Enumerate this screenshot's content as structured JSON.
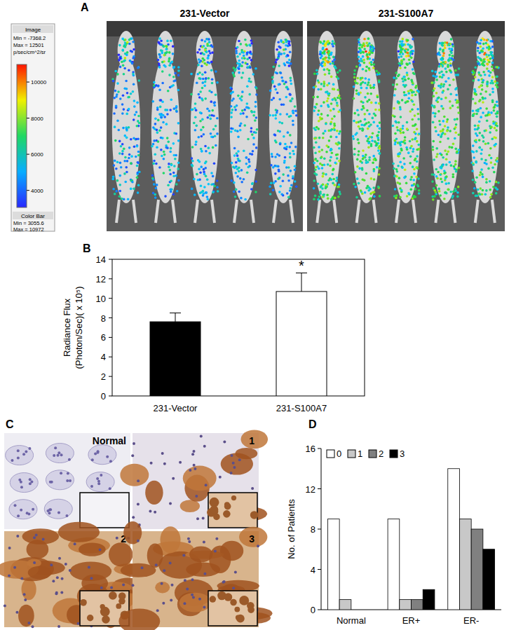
{
  "panel_labels": [
    "A",
    "B",
    "C",
    "D"
  ],
  "panel_a": {
    "groups": [
      "231-Vector",
      "231-S100A7"
    ],
    "image_title": "Image",
    "image_min": "Min = -7368.2",
    "image_max": "Max = 12501",
    "units": "p/sec/cm^2/sr",
    "colorbar_title": "Color Bar",
    "colorbar_min": "Min = 3055.6",
    "colorbar_max": "Max = 10972",
    "colorbar_range": [
      3055.6,
      10972
    ],
    "colorbar_ticks": [
      4000,
      6000,
      8000,
      10000
    ]
  },
  "panel_c": {
    "labels": [
      "Normal",
      "1",
      "2",
      "3"
    ]
  },
  "chart_data": [
    {
      "type": "bar",
      "categories": [
        "231-Vector",
        "231-S100A7"
      ],
      "values": [
        7.6,
        10.7
      ],
      "errors": [
        0.9,
        1.9
      ],
      "colors": [
        "#000000",
        "#ffffff"
      ],
      "y_label": [
        "Radiance Flux",
        "(Photon/Sec)( x 10⁵)"
      ],
      "ylim": [
        0,
        14
      ],
      "yticks": [
        0,
        2,
        4,
        6,
        8,
        10,
        12,
        14
      ],
      "annotations": [
        null,
        "*"
      ]
    },
    {
      "type": "bar",
      "categories": [
        "Normal",
        "ER+",
        "ER-"
      ],
      "series": [
        {
          "name": "0",
          "color": "#ffffff",
          "values": [
            9,
            9,
            14
          ]
        },
        {
          "name": "1",
          "color": "#c8c8c8",
          "values": [
            1,
            1,
            9
          ]
        },
        {
          "name": "2",
          "color": "#808080",
          "values": [
            0,
            1,
            8
          ]
        },
        {
          "name": "3",
          "color": "#000000",
          "values": [
            0,
            2,
            6
          ]
        }
      ],
      "y_label": "No. of Patients",
      "ylim": [
        0,
        16
      ],
      "yticks": [
        0,
        4,
        8,
        12,
        16
      ],
      "legend": "top-left"
    }
  ]
}
